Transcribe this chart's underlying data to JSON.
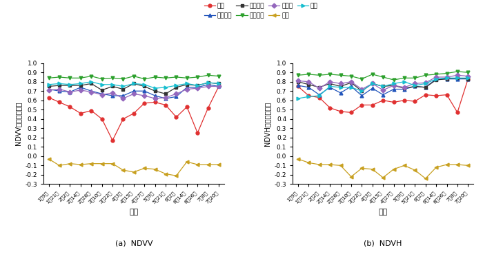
{
  "x_labels": [
    "1月9日",
    "1月21日",
    "2月2日",
    "2月14日",
    "2月26日",
    "3月10日",
    "3月22日",
    "4月3日",
    "4月15日",
    "4月27日",
    "5月9日",
    "5月21日",
    "6月2日",
    "6月14日",
    "6月26日",
    "7月8日",
    "7月20日"
  ],
  "ndvv": {
    "早稻": [
      0.63,
      0.58,
      0.53,
      0.46,
      0.49,
      0.4,
      0.17,
      0.4,
      0.46,
      0.57,
      0.58,
      0.55,
      0.42,
      0.53,
      0.25,
      0.52,
      0.75
    ],
    "早地作物": [
      0.72,
      0.7,
      0.69,
      0.74,
      0.7,
      0.67,
      0.65,
      0.65,
      0.7,
      0.7,
      0.65,
      0.62,
      0.64,
      0.74,
      0.74,
      0.77,
      0.75
    ],
    "橡胶园地": [
      0.75,
      0.76,
      0.76,
      0.76,
      0.78,
      0.71,
      0.75,
      0.72,
      0.78,
      0.75,
      0.7,
      0.67,
      0.74,
      0.77,
      0.76,
      0.79,
      0.78
    ],
    "香蕉园地": [
      0.84,
      0.85,
      0.84,
      0.84,
      0.86,
      0.83,
      0.84,
      0.83,
      0.86,
      0.83,
      0.85,
      0.84,
      0.85,
      0.84,
      0.85,
      0.87,
      0.86
    ],
    "建筑物": [
      0.71,
      0.72,
      0.69,
      0.71,
      0.69,
      0.66,
      0.68,
      0.62,
      0.67,
      0.65,
      0.62,
      0.63,
      0.67,
      0.72,
      0.73,
      0.75,
      0.75
    ],
    "水域": [
      -0.03,
      -0.1,
      -0.08,
      -0.09,
      -0.08,
      -0.08,
      -0.08,
      -0.15,
      -0.17,
      -0.13,
      -0.14,
      -0.19,
      -0.21,
      -0.06,
      -0.09,
      -0.09,
      -0.09
    ],
    "其他": [
      0.77,
      0.78,
      0.77,
      0.78,
      0.8,
      0.77,
      0.77,
      0.75,
      0.78,
      0.77,
      0.73,
      0.74,
      0.76,
      0.78,
      0.76,
      0.79,
      0.78
    ]
  },
  "ndvh": {
    "早稻": [
      0.75,
      0.65,
      0.63,
      0.52,
      0.48,
      0.47,
      0.55,
      0.55,
      0.6,
      0.58,
      0.6,
      0.59,
      0.66,
      0.65,
      0.66,
      0.47,
      0.83
    ],
    "早地作物": [
      0.76,
      0.74,
      0.66,
      0.74,
      0.68,
      0.75,
      0.65,
      0.73,
      0.66,
      0.72,
      0.72,
      0.75,
      0.74,
      0.83,
      0.83,
      0.83,
      0.83
    ],
    "橡胶园地": [
      0.8,
      0.77,
      0.74,
      0.78,
      0.75,
      0.79,
      0.7,
      0.78,
      0.75,
      0.76,
      0.73,
      0.75,
      0.74,
      0.82,
      0.83,
      0.84,
      0.83
    ],
    "香蕉园地": [
      0.87,
      0.88,
      0.87,
      0.88,
      0.87,
      0.86,
      0.83,
      0.88,
      0.85,
      0.82,
      0.84,
      0.84,
      0.87,
      0.88,
      0.89,
      0.91,
      0.9
    ],
    "建筑物": [
      0.81,
      0.8,
      0.73,
      0.8,
      0.78,
      0.8,
      0.72,
      0.78,
      0.71,
      0.76,
      0.74,
      0.78,
      0.79,
      0.85,
      0.85,
      0.87,
      0.86
    ],
    "水域": [
      -0.03,
      -0.07,
      -0.09,
      -0.09,
      -0.1,
      -0.22,
      -0.13,
      -0.14,
      -0.23,
      -0.14,
      -0.1,
      -0.15,
      -0.24,
      -0.12,
      -0.09,
      -0.09,
      -0.1
    ],
    "其他": [
      0.62,
      0.64,
      0.65,
      0.75,
      0.74,
      0.74,
      0.7,
      0.78,
      0.75,
      0.78,
      0.8,
      0.76,
      0.78,
      0.83,
      0.84,
      0.84,
      0.84
    ]
  },
  "series_styles": {
    "早稻": {
      "color": "#e03030",
      "marker": "o",
      "linestyle": "-"
    },
    "早地作物": {
      "color": "#2255bb",
      "marker": "^",
      "linestyle": "-"
    },
    "橡胶园地": {
      "color": "#333333",
      "marker": "s",
      "linestyle": "-"
    },
    "香蕉园地": {
      "color": "#2ca02c",
      "marker": "v",
      "linestyle": "-"
    },
    "建筑物": {
      "color": "#9467bd",
      "marker": "D",
      "linestyle": "-"
    },
    "水域": {
      "color": "#c8a020",
      "marker": "<",
      "linestyle": "-"
    },
    "其他": {
      "color": "#17becf",
      "marker": ">",
      "linestyle": "-"
    }
  },
  "ylim": [
    -0.3,
    1.0
  ],
  "yticks": [
    -0.3,
    -0.2,
    -0.1,
    0.0,
    0.1,
    0.2,
    0.3,
    0.4,
    0.5,
    0.6,
    0.7,
    0.8,
    0.9,
    1.0
  ],
  "ylabel_left": "NDVV后向散射系数",
  "ylabel_right": "NDVH后向散射系数",
  "xlabel": "时间",
  "title_left": "(a)  NDVV",
  "title_right": "(b)  NDVH",
  "legend_order": [
    "早稻",
    "早地作物",
    "橡胶园地",
    "香蕉园地",
    "建筑物",
    "水域",
    "其他"
  ],
  "markersize": 3.5,
  "linewidth": 0.9
}
